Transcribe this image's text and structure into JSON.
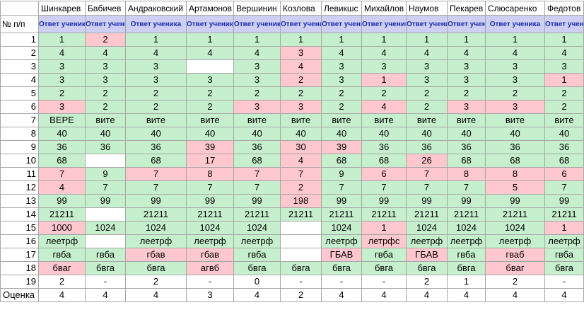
{
  "sheet": {
    "row_header_label": "№ п/п",
    "grade_label": "Оценка",
    "answer_header": "Ответ ученика",
    "students": [
      {
        "name": "Шинкарев",
        "header": "Ответ ученика"
      },
      {
        "name": "Бабичев",
        "header": "Ответ ученика"
      },
      {
        "name": "Андраковский",
        "header": "Ответ ученика"
      },
      {
        "name": "Артамонов",
        "header": "Ответ ученика"
      },
      {
        "name": "Вершинин",
        "header": "Ответ ученика"
      },
      {
        "name": "Козлова",
        "header": "Ответ ученика"
      },
      {
        "name": "Левикшс",
        "header": "Ответ ученика"
      },
      {
        "name": "Михайлов",
        "header": "Ответ ученика"
      },
      {
        "name": "Наумов",
        "header": "Ответ ученика"
      },
      {
        "name": "Пекарев",
        "header": "Ответ ученика"
      },
      {
        "name": "Слюсаренко",
        "header": "Ответ ученика"
      },
      {
        "name": "Федотов",
        "header": "Ответ ученика"
      }
    ],
    "colors": {
      "correct": "#c6efce",
      "wrong": "#ffc7ce",
      "empty": "#ffffff",
      "header": "#cdd0f2",
      "header_text": "#1c2fb0"
    },
    "rows": [
      {
        "n": "1",
        "cells": [
          [
            "1",
            "g"
          ],
          [
            "2",
            "r"
          ],
          [
            "1",
            "g"
          ],
          [
            "1",
            "g"
          ],
          [
            "1",
            "g"
          ],
          [
            "1",
            "g"
          ],
          [
            "1",
            "g"
          ],
          [
            "1",
            "g"
          ],
          [
            "1",
            "g"
          ],
          [
            "1",
            "g"
          ],
          [
            "1",
            "g"
          ],
          [
            "1",
            "g"
          ]
        ]
      },
      {
        "n": "2",
        "cells": [
          [
            "4",
            "g"
          ],
          [
            "4",
            "g"
          ],
          [
            "4",
            "g"
          ],
          [
            "4",
            "g"
          ],
          [
            "4",
            "g"
          ],
          [
            "3",
            "r"
          ],
          [
            "4",
            "g"
          ],
          [
            "4",
            "g"
          ],
          [
            "4",
            "g"
          ],
          [
            "4",
            "g"
          ],
          [
            "4",
            "g"
          ],
          [
            "4",
            "g"
          ]
        ]
      },
      {
        "n": "3",
        "cells": [
          [
            "3",
            "g"
          ],
          [
            "3",
            "g"
          ],
          [
            "3",
            "g"
          ],
          [
            "",
            "w"
          ],
          [
            "3",
            "g"
          ],
          [
            "4",
            "r"
          ],
          [
            "3",
            "g"
          ],
          [
            "3",
            "g"
          ],
          [
            "3",
            "g"
          ],
          [
            "3",
            "g"
          ],
          [
            "3",
            "g"
          ],
          [
            "3",
            "g"
          ]
        ]
      },
      {
        "n": "4",
        "cells": [
          [
            "3",
            "g"
          ],
          [
            "3",
            "g"
          ],
          [
            "3",
            "g"
          ],
          [
            "3",
            "g"
          ],
          [
            "3",
            "g"
          ],
          [
            "2",
            "r"
          ],
          [
            "3",
            "g"
          ],
          [
            "1",
            "r"
          ],
          [
            "3",
            "g"
          ],
          [
            "3",
            "g"
          ],
          [
            "3",
            "g"
          ],
          [
            "1",
            "r"
          ]
        ]
      },
      {
        "n": "5",
        "cells": [
          [
            "2",
            "g"
          ],
          [
            "2",
            "g"
          ],
          [
            "2",
            "g"
          ],
          [
            "2",
            "g"
          ],
          [
            "2",
            "g"
          ],
          [
            "2",
            "g"
          ],
          [
            "2",
            "g"
          ],
          [
            "2",
            "g"
          ],
          [
            "2",
            "g"
          ],
          [
            "2",
            "g"
          ],
          [
            "2",
            "g"
          ],
          [
            "2",
            "g"
          ]
        ]
      },
      {
        "n": "6",
        "cells": [
          [
            "3",
            "r"
          ],
          [
            "2",
            "g"
          ],
          [
            "2",
            "g"
          ],
          [
            "2",
            "g"
          ],
          [
            "3",
            "r"
          ],
          [
            "3",
            "r"
          ],
          [
            "2",
            "g"
          ],
          [
            "4",
            "r"
          ],
          [
            "2",
            "g"
          ],
          [
            "3",
            "r"
          ],
          [
            "3",
            "r"
          ],
          [
            "2",
            "g"
          ]
        ]
      },
      {
        "n": "7",
        "cells": [
          [
            "ВЕРЕ",
            "g"
          ],
          [
            "вите",
            "g"
          ],
          [
            "вите",
            "g"
          ],
          [
            "вите",
            "g"
          ],
          [
            "вите",
            "g"
          ],
          [
            "вите",
            "g"
          ],
          [
            "вите",
            "g"
          ],
          [
            "вите",
            "g"
          ],
          [
            "вите",
            "g"
          ],
          [
            "вите",
            "g"
          ],
          [
            "вите",
            "g"
          ],
          [
            "вите",
            "g"
          ]
        ]
      },
      {
        "n": "8",
        "cells": [
          [
            "40",
            "g"
          ],
          [
            "40",
            "g"
          ],
          [
            "40",
            "g"
          ],
          [
            "40",
            "g"
          ],
          [
            "40",
            "g"
          ],
          [
            "40",
            "g"
          ],
          [
            "40",
            "g"
          ],
          [
            "40",
            "g"
          ],
          [
            "40",
            "g"
          ],
          [
            "40",
            "g"
          ],
          [
            "40",
            "g"
          ],
          [
            "40",
            "g"
          ]
        ]
      },
      {
        "n": "9",
        "cells": [
          [
            "36",
            "g"
          ],
          [
            "36",
            "g"
          ],
          [
            "36",
            "g"
          ],
          [
            "39",
            "r"
          ],
          [
            "36",
            "g"
          ],
          [
            "30",
            "r"
          ],
          [
            "39",
            "r"
          ],
          [
            "36",
            "g"
          ],
          [
            "36",
            "g"
          ],
          [
            "36",
            "g"
          ],
          [
            "36",
            "g"
          ],
          [
            "36",
            "g"
          ]
        ]
      },
      {
        "n": "10",
        "cells": [
          [
            "68",
            "g"
          ],
          [
            "",
            "w"
          ],
          [
            "68",
            "g"
          ],
          [
            "17",
            "r"
          ],
          [
            "68",
            "g"
          ],
          [
            "4",
            "r"
          ],
          [
            "68",
            "g"
          ],
          [
            "68",
            "g"
          ],
          [
            "26",
            "r"
          ],
          [
            "68",
            "g"
          ],
          [
            "68",
            "g"
          ],
          [
            "68",
            "g"
          ]
        ]
      },
      {
        "n": "11",
        "cells": [
          [
            "7",
            "r"
          ],
          [
            "9",
            "g"
          ],
          [
            "7",
            "r"
          ],
          [
            "8",
            "r"
          ],
          [
            "7",
            "r"
          ],
          [
            "7",
            "r"
          ],
          [
            "9",
            "g"
          ],
          [
            "6",
            "r"
          ],
          [
            "7",
            "r"
          ],
          [
            "8",
            "r"
          ],
          [
            "8",
            "r"
          ],
          [
            "6",
            "r"
          ]
        ]
      },
      {
        "n": "12",
        "cells": [
          [
            "4",
            "r"
          ],
          [
            "7",
            "g"
          ],
          [
            "7",
            "g"
          ],
          [
            "7",
            "g"
          ],
          [
            "7",
            "g"
          ],
          [
            "2",
            "r"
          ],
          [
            "7",
            "g"
          ],
          [
            "7",
            "g"
          ],
          [
            "7",
            "g"
          ],
          [
            "7",
            "g"
          ],
          [
            "5",
            "r"
          ],
          [
            "7",
            "g"
          ]
        ]
      },
      {
        "n": "13",
        "cells": [
          [
            "99",
            "g"
          ],
          [
            "99",
            "g"
          ],
          [
            "99",
            "g"
          ],
          [
            "99",
            "g"
          ],
          [
            "99",
            "g"
          ],
          [
            "198",
            "r"
          ],
          [
            "99",
            "g"
          ],
          [
            "99",
            "g"
          ],
          [
            "99",
            "g"
          ],
          [
            "99",
            "g"
          ],
          [
            "99",
            "g"
          ],
          [
            "99",
            "g"
          ]
        ]
      },
      {
        "n": "14",
        "cells": [
          [
            "21211",
            "g"
          ],
          [
            "",
            "w"
          ],
          [
            "21211",
            "g"
          ],
          [
            "21211",
            "g"
          ],
          [
            "21211",
            "g"
          ],
          [
            "21211",
            "g"
          ],
          [
            "21211",
            "g"
          ],
          [
            "21211",
            "g"
          ],
          [
            "21211",
            "g"
          ],
          [
            "21211",
            "g"
          ],
          [
            "21211",
            "g"
          ],
          [
            "21211",
            "g"
          ]
        ]
      },
      {
        "n": "15",
        "cells": [
          [
            "1000",
            "r"
          ],
          [
            "1024",
            "g"
          ],
          [
            "1024",
            "g"
          ],
          [
            "1024",
            "g"
          ],
          [
            "1024",
            "g"
          ],
          [
            "",
            "w"
          ],
          [
            "1024",
            "g"
          ],
          [
            "1",
            "r"
          ],
          [
            "1024",
            "g"
          ],
          [
            "1024",
            "g"
          ],
          [
            "1024",
            "g"
          ],
          [
            "1",
            "r"
          ]
        ]
      },
      {
        "n": "16",
        "cells": [
          [
            "леетрф",
            "g"
          ],
          [
            "",
            "w"
          ],
          [
            "леетрф",
            "g"
          ],
          [
            "леетрф",
            "g"
          ],
          [
            "леетрф",
            "g"
          ],
          [
            "",
            "w"
          ],
          [
            "леетрф",
            "g"
          ],
          [
            "летрфс",
            "r"
          ],
          [
            "леетрф",
            "g"
          ],
          [
            "леетрф",
            "g"
          ],
          [
            "леетрф",
            "g"
          ],
          [
            "леетрф",
            "g"
          ]
        ]
      },
      {
        "n": "17",
        "cells": [
          [
            "гвба",
            "g"
          ],
          [
            "гвба",
            "g"
          ],
          [
            "гбав",
            "r"
          ],
          [
            "гбав",
            "r"
          ],
          [
            "гвба",
            "g"
          ],
          [
            "",
            "w"
          ],
          [
            "ГБАВ",
            "r"
          ],
          [
            "гвба",
            "g"
          ],
          [
            "ГБАВ",
            "r"
          ],
          [
            "гвба",
            "g"
          ],
          [
            "гваб",
            "r"
          ],
          [
            "гвба",
            "g"
          ]
        ]
      },
      {
        "n": "18",
        "cells": [
          [
            "бваг",
            "r"
          ],
          [
            "бвга",
            "g"
          ],
          [
            "бвга",
            "g"
          ],
          [
            "агвб",
            "r"
          ],
          [
            "бвга",
            "g"
          ],
          [
            "бвга",
            "g"
          ],
          [
            "бвга",
            "g"
          ],
          [
            "бвга",
            "g"
          ],
          [
            "бвга",
            "g"
          ],
          [
            "бвга",
            "g"
          ],
          [
            "бваг",
            "r"
          ],
          [
            "бвга",
            "g"
          ]
        ]
      },
      {
        "n": "19",
        "cells": [
          [
            "2",
            "w"
          ],
          [
            "-",
            "w"
          ],
          [
            "2",
            "w"
          ],
          [
            "-",
            "w"
          ],
          [
            "0",
            "w"
          ],
          [
            "-",
            "w"
          ],
          [
            "-",
            "w"
          ],
          [
            "-",
            "w"
          ],
          [
            "2",
            "w"
          ],
          [
            "1",
            "w"
          ],
          [
            "2",
            "w"
          ],
          [
            "-",
            "w"
          ]
        ]
      }
    ],
    "grades": [
      "4",
      "4",
      "4",
      "3",
      "4",
      "2",
      "4",
      "4",
      "4",
      "4",
      "4",
      "4"
    ]
  }
}
